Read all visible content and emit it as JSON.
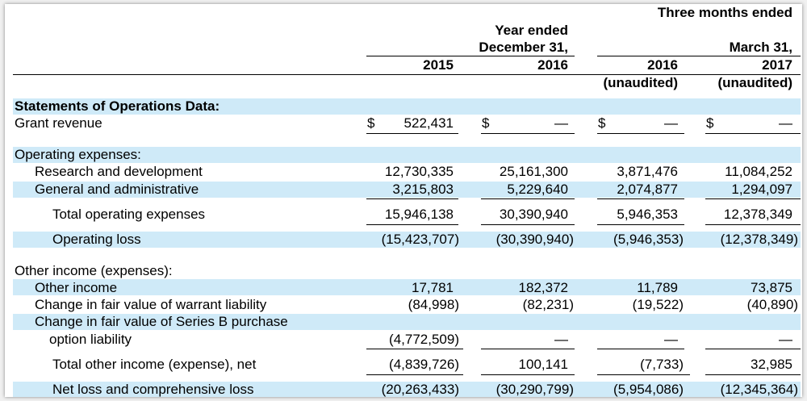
{
  "headers": {
    "three_months": "Three months ended",
    "year_ended": "Year ended",
    "dec31": "December 31,",
    "mar31": "March 31,",
    "y2015": "2015",
    "y2016": "2016",
    "q2016": "2016",
    "q2017": "2017",
    "unaudited1": "(unaudited)",
    "unaudited2": "(unaudited)"
  },
  "currency_symbol": "$",
  "rows": [
    {
      "label": "Statements of Operations Data:",
      "values": [
        "",
        "",
        "",
        ""
      ]
    },
    {
      "label": "Grant revenue",
      "values": [
        "522,431",
        "—",
        "—",
        "—"
      ]
    },
    {
      "label": "Operating expenses:",
      "values": [
        "",
        "",
        "",
        ""
      ]
    },
    {
      "label": "Research and development",
      "values": [
        "12,730,335",
        "25,161,300",
        "3,871,476",
        "11,084,252"
      ]
    },
    {
      "label": "General and administrative",
      "values": [
        "3,215,803",
        "5,229,640",
        "2,074,877",
        "1,294,097"
      ]
    },
    {
      "label": "Total operating expenses",
      "values": [
        "15,946,138",
        "30,390,940",
        "5,946,353",
        "12,378,349"
      ]
    },
    {
      "label": "Operating loss",
      "values": [
        "(15,423,707)",
        "(30,390,940)",
        "(5,946,353)",
        "(12,378,349)"
      ]
    },
    {
      "label": "Other income (expenses):",
      "values": [
        "",
        "",
        "",
        ""
      ]
    },
    {
      "label": "Other income",
      "values": [
        "17,781",
        "182,372",
        "11,789",
        "73,875"
      ]
    },
    {
      "label": "Change in fair value of warrant liability",
      "values": [
        "(84,998)",
        "(82,231)",
        "(19,522)",
        "(40,890)"
      ]
    },
    {
      "label": "Change in fair value of Series B purchase",
      "values": [
        "",
        "",
        "",
        ""
      ]
    },
    {
      "label": "option liability",
      "values": [
        "(4,772,509)",
        "—",
        "—",
        "—"
      ]
    },
    {
      "label": "Total other income (expense), net",
      "values": [
        "(4,839,726)",
        "100,141",
        "(7,733)",
        "32,985"
      ]
    },
    {
      "label": "Net loss and comprehensive loss",
      "values": [
        "(20,263,433)",
        "(30,290,799)",
        "(5,954,086)",
        "(12,345,364)"
      ]
    }
  ]
}
